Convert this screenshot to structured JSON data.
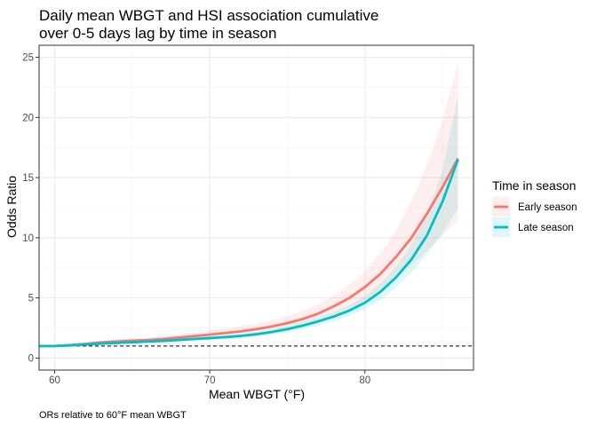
{
  "chart_data": {
    "type": "line",
    "title_lines": [
      "Daily mean WBGT and HSI association cumulative",
      "over 0-5 days lag by time in season"
    ],
    "xlabel": "Mean WBGT (°F)",
    "ylabel": "Odds Ratio",
    "caption": "ORs relative to 60°F mean WBGT",
    "xlim": [
      59,
      87
    ],
    "ylim": [
      -1,
      26
    ],
    "x_ticks": [
      60,
      70,
      80
    ],
    "y_ticks": [
      0,
      5,
      10,
      15,
      20,
      25
    ],
    "grid": true,
    "reference_line": {
      "y": 1,
      "style": "dashed"
    },
    "legend": {
      "title": "Time in season",
      "position": "right"
    },
    "series": [
      {
        "name": "Early season",
        "color": "#F8766D",
        "points": [
          [
            59,
            1.0
          ],
          [
            60,
            1.0
          ],
          [
            61,
            1.08
          ],
          [
            62,
            1.18
          ],
          [
            63,
            1.3
          ],
          [
            64,
            1.38
          ],
          [
            65,
            1.44
          ],
          [
            66,
            1.5
          ],
          [
            67,
            1.58
          ],
          [
            68,
            1.7
          ],
          [
            69,
            1.82
          ],
          [
            70,
            1.95
          ],
          [
            71,
            2.08
          ],
          [
            72,
            2.22
          ],
          [
            73,
            2.4
          ],
          [
            74,
            2.62
          ],
          [
            75,
            2.9
          ],
          [
            76,
            3.25
          ],
          [
            77,
            3.7
          ],
          [
            78,
            4.3
          ],
          [
            79,
            5.0
          ],
          [
            80,
            5.9
          ],
          [
            81,
            7.0
          ],
          [
            82,
            8.4
          ],
          [
            83,
            10.0
          ],
          [
            84,
            12.0
          ],
          [
            85,
            14.2
          ],
          [
            86,
            16.6
          ]
        ],
        "lower": [
          [
            59,
            0.98
          ],
          [
            60,
            1.0
          ],
          [
            61,
            1.04
          ],
          [
            62,
            1.1
          ],
          [
            63,
            1.18
          ],
          [
            64,
            1.24
          ],
          [
            65,
            1.28
          ],
          [
            66,
            1.32
          ],
          [
            67,
            1.38
          ],
          [
            68,
            1.46
          ],
          [
            69,
            1.55
          ],
          [
            70,
            1.65
          ],
          [
            71,
            1.75
          ],
          [
            72,
            1.86
          ],
          [
            73,
            2.0
          ],
          [
            74,
            2.18
          ],
          [
            75,
            2.4
          ],
          [
            76,
            2.68
          ],
          [
            77,
            3.05
          ],
          [
            78,
            3.5
          ],
          [
            79,
            4.1
          ],
          [
            80,
            4.8
          ],
          [
            81,
            5.6
          ],
          [
            82,
            6.6
          ],
          [
            83,
            7.7
          ],
          [
            84,
            8.9
          ],
          [
            85,
            10.2
          ],
          [
            86,
            11.5
          ]
        ],
        "upper": [
          [
            59,
            1.02
          ],
          [
            60,
            1.0
          ],
          [
            61,
            1.12
          ],
          [
            62,
            1.26
          ],
          [
            63,
            1.43
          ],
          [
            64,
            1.54
          ],
          [
            65,
            1.62
          ],
          [
            66,
            1.7
          ],
          [
            67,
            1.8
          ],
          [
            68,
            1.96
          ],
          [
            69,
            2.12
          ],
          [
            70,
            2.3
          ],
          [
            71,
            2.46
          ],
          [
            72,
            2.64
          ],
          [
            73,
            2.86
          ],
          [
            74,
            3.14
          ],
          [
            75,
            3.48
          ],
          [
            76,
            3.92
          ],
          [
            77,
            4.46
          ],
          [
            78,
            5.2
          ],
          [
            79,
            6.1
          ],
          [
            80,
            7.2
          ],
          [
            81,
            8.7
          ],
          [
            82,
            10.6
          ],
          [
            83,
            13.0
          ],
          [
            84,
            16.0
          ],
          [
            85,
            19.8
          ],
          [
            86,
            24.5
          ]
        ]
      },
      {
        "name": "Late season",
        "color": "#00BFC4",
        "points": [
          [
            59,
            1.0
          ],
          [
            60,
            1.0
          ],
          [
            61,
            1.05
          ],
          [
            62,
            1.12
          ],
          [
            63,
            1.2
          ],
          [
            64,
            1.26
          ],
          [
            65,
            1.31
          ],
          [
            66,
            1.37
          ],
          [
            67,
            1.43
          ],
          [
            68,
            1.5
          ],
          [
            69,
            1.58
          ],
          [
            70,
            1.66
          ],
          [
            71,
            1.74
          ],
          [
            72,
            1.84
          ],
          [
            73,
            1.98
          ],
          [
            74,
            2.16
          ],
          [
            75,
            2.4
          ],
          [
            76,
            2.7
          ],
          [
            77,
            3.05
          ],
          [
            78,
            3.45
          ],
          [
            79,
            3.95
          ],
          [
            80,
            4.6
          ],
          [
            81,
            5.5
          ],
          [
            82,
            6.7
          ],
          [
            83,
            8.2
          ],
          [
            84,
            10.2
          ],
          [
            85,
            13.0
          ],
          [
            86,
            16.5
          ]
        ],
        "lower": [
          [
            59,
            0.99
          ],
          [
            60,
            1.0
          ],
          [
            61,
            1.02
          ],
          [
            62,
            1.07
          ],
          [
            63,
            1.13
          ],
          [
            64,
            1.18
          ],
          [
            65,
            1.22
          ],
          [
            66,
            1.27
          ],
          [
            67,
            1.32
          ],
          [
            68,
            1.38
          ],
          [
            69,
            1.45
          ],
          [
            70,
            1.52
          ],
          [
            71,
            1.59
          ],
          [
            72,
            1.67
          ],
          [
            73,
            1.79
          ],
          [
            74,
            1.94
          ],
          [
            75,
            2.15
          ],
          [
            76,
            2.41
          ],
          [
            77,
            2.72
          ],
          [
            78,
            3.06
          ],
          [
            79,
            3.5
          ],
          [
            80,
            4.05
          ],
          [
            81,
            4.82
          ],
          [
            82,
            5.85
          ],
          [
            83,
            7.1
          ],
          [
            84,
            8.6
          ],
          [
            85,
            10.4
          ],
          [
            86,
            12.4
          ]
        ],
        "upper": [
          [
            59,
            1.01
          ],
          [
            60,
            1.0
          ],
          [
            61,
            1.08
          ],
          [
            62,
            1.17
          ],
          [
            63,
            1.27
          ],
          [
            64,
            1.34
          ],
          [
            65,
            1.4
          ],
          [
            66,
            1.47
          ],
          [
            67,
            1.54
          ],
          [
            68,
            1.62
          ],
          [
            69,
            1.71
          ],
          [
            70,
            1.8
          ],
          [
            71,
            1.89
          ],
          [
            72,
            2.01
          ],
          [
            73,
            2.17
          ],
          [
            74,
            2.38
          ],
          [
            75,
            2.65
          ],
          [
            76,
            2.99
          ],
          [
            77,
            3.38
          ],
          [
            78,
            3.84
          ],
          [
            79,
            4.4
          ],
          [
            80,
            5.15
          ],
          [
            81,
            6.2
          ],
          [
            82,
            7.6
          ],
          [
            83,
            9.4
          ],
          [
            84,
            11.9
          ],
          [
            85,
            15.6
          ],
          [
            86,
            21.8
          ]
        ]
      }
    ]
  }
}
